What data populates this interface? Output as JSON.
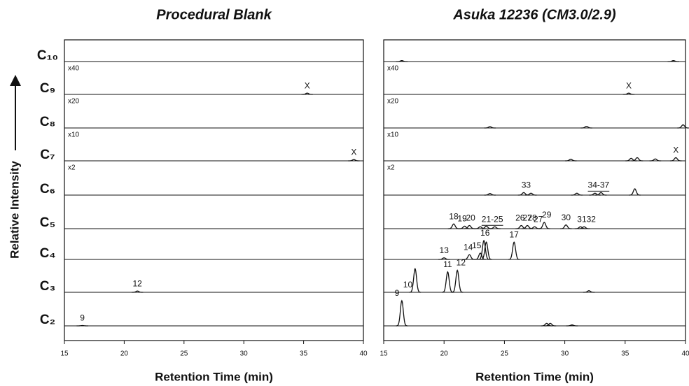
{
  "chart_data": [
    {
      "type": "chromatogram",
      "title": "Procedural Blank",
      "xlabel": "Retention Time (min)",
      "ylabel": "Relative Intensity",
      "row_labels": [
        "C₁₀",
        "C₉",
        "C₈",
        "C₇",
        "C₆",
        "C₅",
        "C₄",
        "C₃",
        "C₂"
      ],
      "xlim": [
        15,
        40
      ],
      "xticks": [
        15,
        20,
        25,
        30,
        35,
        40
      ],
      "series": [
        {
          "scale": "x40",
          "peaks_x": [],
          "peaks_y": [],
          "labels": []
        },
        {
          "scale": "x20",
          "peaks_x": [
            35.3
          ],
          "peaks_y": [
            0.04
          ],
          "labels": [
            {
              "text": "X",
              "x": 35.3
            }
          ]
        },
        {
          "scale": "x10",
          "peaks_x": [],
          "peaks_y": [],
          "labels": []
        },
        {
          "scale": "x2",
          "peaks_x": [
            39.2
          ],
          "peaks_y": [
            0.04
          ],
          "labels": [
            {
              "text": "X",
              "x": 39.2
            }
          ]
        },
        {
          "peaks_x": [],
          "peaks_y": [],
          "labels": []
        },
        {
          "peaks_x": [],
          "peaks_y": [],
          "labels": []
        },
        {
          "peaks_x": [],
          "peaks_y": [],
          "labels": []
        },
        {
          "peaks_x": [
            21.1
          ],
          "peaks_y": [
            0.04
          ],
          "labels": [
            {
              "text": "12",
              "x": 21.1
            }
          ]
        },
        {
          "peaks_x": [
            16.5
          ],
          "peaks_y": [
            0.01
          ],
          "labels": [
            {
              "text": "9",
              "x": 16.5
            }
          ]
        }
      ]
    },
    {
      "type": "chromatogram",
      "title": "Asuka 12236 (CM3.0/2.9)",
      "xlabel": "Retention Time (min)",
      "xlim": [
        15,
        40
      ],
      "xticks": [
        15,
        20,
        25,
        30,
        35,
        40
      ],
      "series": [
        {
          "scale": "x40",
          "peaks_x": [
            16.5,
            39.0
          ],
          "peaks_y": [
            0.03,
            0.03
          ],
          "labels": []
        },
        {
          "scale": "x20",
          "peaks_x": [
            35.3
          ],
          "peaks_y": [
            0.04
          ],
          "labels": [
            {
              "text": "X",
              "x": 35.3
            }
          ]
        },
        {
          "scale": "x10",
          "peaks_x": [
            23.8,
            31.8,
            39.8
          ],
          "peaks_y": [
            0.04,
            0.05,
            0.1
          ],
          "labels": []
        },
        {
          "scale": "x2",
          "peaks_x": [
            30.5,
            35.5,
            36.0,
            37.5,
            39.2
          ],
          "peaks_y": [
            0.05,
            0.08,
            0.1,
            0.06,
            0.1
          ],
          "labels": [
            {
              "text": "X",
              "x": 39.2
            }
          ]
        },
        {
          "peaks_x": [
            23.8,
            26.6,
            27.2,
            31.0,
            32.5,
            33.0,
            35.8
          ],
          "peaks_y": [
            0.05,
            0.08,
            0.06,
            0.06,
            0.06,
            0.08,
            0.2
          ],
          "labels": [
            {
              "text": "33",
              "x": 26.8
            },
            {
              "text": "34-37",
              "x": 32.8,
              "underlined": true
            }
          ]
        },
        {
          "peaks_x": [
            20.8,
            21.7,
            22.1,
            23.0,
            23.5,
            24.2,
            26.4,
            26.9,
            27.5,
            28.3,
            30.1,
            31.3,
            31.6
          ],
          "peaks_y": [
            0.15,
            0.08,
            0.1,
            0.06,
            0.08,
            0.06,
            0.1,
            0.1,
            0.06,
            0.2,
            0.12,
            0.06,
            0.06
          ],
          "labels": [
            {
              "text": "18",
              "x": 20.8
            },
            {
              "text": "19",
              "x": 21.5
            },
            {
              "text": "20",
              "x": 22.2
            },
            {
              "text": "21-25",
              "x": 24.0,
              "underlined": true
            },
            {
              "text": "26",
              "x": 26.3
            },
            {
              "text": "27",
              "x": 26.9
            },
            {
              "text": "28",
              "x": 27.3
            },
            {
              "text": "27",
              "x": 27.8
            },
            {
              "text": "29",
              "x": 28.5
            },
            {
              "text": "30",
              "x": 30.1
            },
            {
              "text": "3132",
              "x": 31.8
            }
          ]
        },
        {
          "peaks_x": [
            20.0,
            22.1,
            23.0,
            23.3,
            23.5,
            25.8
          ],
          "peaks_y": [
            0.05,
            0.15,
            0.2,
            0.6,
            0.55,
            0.55
          ],
          "labels": [
            {
              "text": "13",
              "x": 20.0
            },
            {
              "text": "14",
              "x": 22.0
            },
            {
              "text": "15",
              "x": 22.7
            },
            {
              "text": "16",
              "x": 23.4
            },
            {
              "text": "17",
              "x": 25.8
            }
          ]
        },
        {
          "peaks_x": [
            17.6,
            20.3,
            21.1,
            32.0
          ],
          "peaks_y": [
            0.75,
            0.65,
            0.7,
            0.05
          ],
          "labels": [
            {
              "text": "10",
              "x": 17.0
            },
            {
              "text": "11",
              "x": 20.3
            },
            {
              "text": "12",
              "x": 21.4
            }
          ]
        },
        {
          "peaks_x": [
            16.5,
            28.5,
            28.8,
            30.6
          ],
          "peaks_y": [
            0.8,
            0.08,
            0.08,
            0.03
          ],
          "labels": [
            {
              "text": "9",
              "x": 16.1
            }
          ]
        }
      ]
    }
  ]
}
